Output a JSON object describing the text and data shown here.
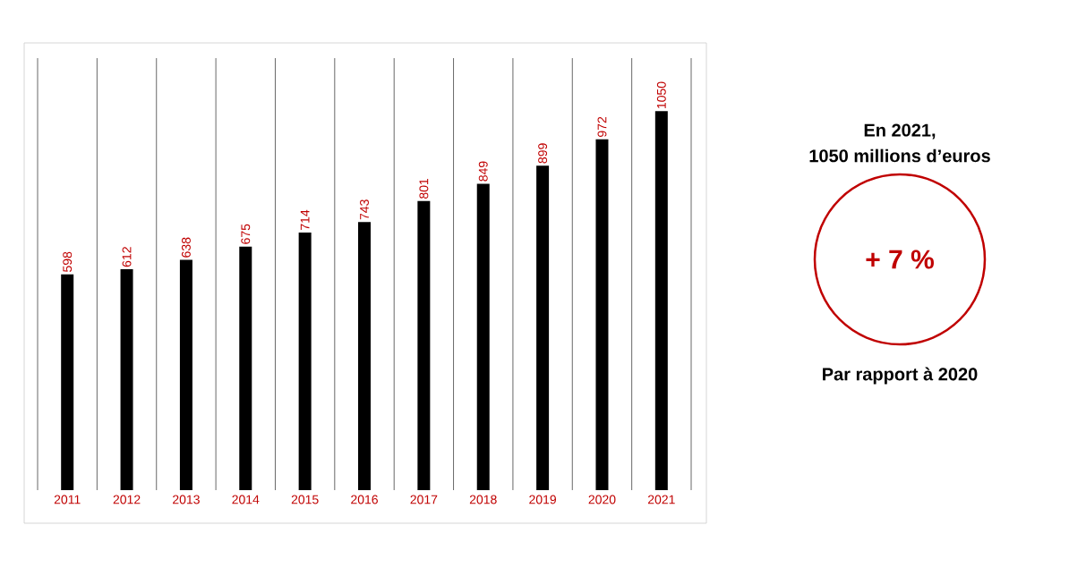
{
  "chart_data": [
    {
      "type": "bar",
      "categories": [
        "2011",
        "2012",
        "2013",
        "2014",
        "2015",
        "2016",
        "2017",
        "2018",
        "2019",
        "2020",
        "2021"
      ],
      "values": [
        598,
        612,
        638,
        675,
        714,
        743,
        801,
        849,
        899,
        972,
        1050
      ],
      "color": "#000000",
      "data_labels": true,
      "grid": "x",
      "tick_labels": "x"
    },
    {
      "type": "other",
      "title": "En 2021,",
      "subtitle": "1050 millions d’euros",
      "color": "#c00000",
      "annotations": [
        "+ 7 %",
        "Par rapport à 2020"
      ]
    }
  ]
}
